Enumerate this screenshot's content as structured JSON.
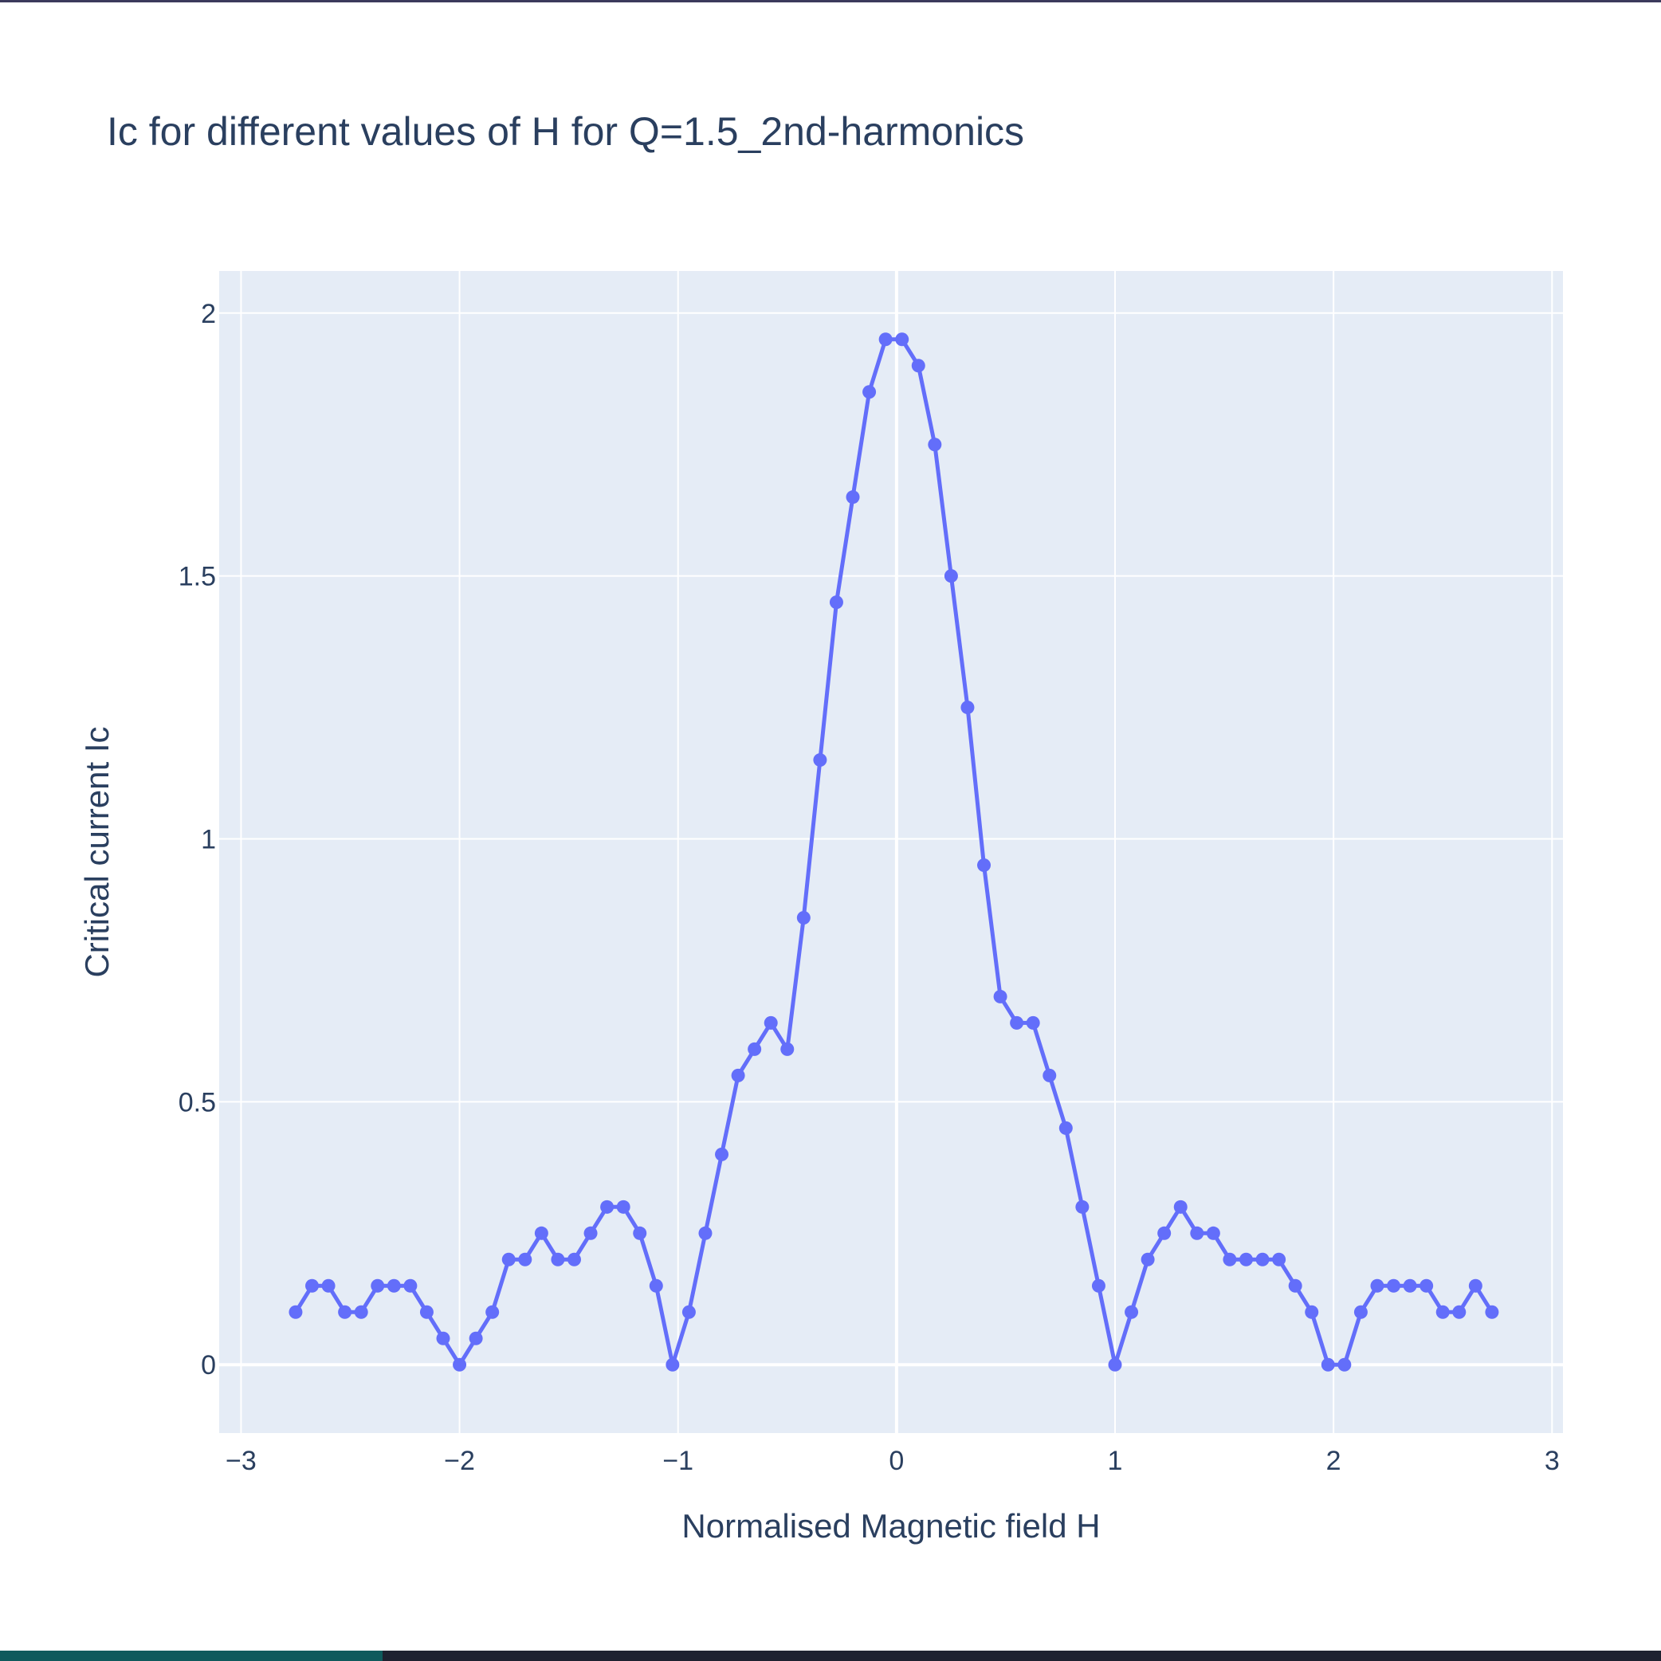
{
  "chart_data": {
    "type": "line",
    "title": "Ic for different values of H for Q=1.5_2nd-harmonics",
    "xlabel": "Normalised Magnetic field H",
    "ylabel": "Critical current Ic",
    "xlim": [
      -3.1,
      3.05
    ],
    "ylim": [
      -0.13,
      2.08
    ],
    "x_ticks": [
      -3,
      -2,
      -1,
      0,
      1,
      2,
      3
    ],
    "x_tick_labels": [
      "−3",
      "−2",
      "−1",
      "0",
      "1",
      "2",
      "3"
    ],
    "y_ticks": [
      0,
      0.5,
      1,
      1.5,
      2
    ],
    "y_tick_labels": [
      "0",
      "0.5",
      "1",
      "1.5",
      "2"
    ],
    "grid": true,
    "colors": {
      "line": "#636efa",
      "plot_bg": "#e5ecf6",
      "grid": "#ffffff",
      "text": "#2a3f5f"
    },
    "series": [
      {
        "mode": "lines+markers",
        "x": [
          -2.75,
          -2.675,
          -2.6,
          -2.525,
          -2.45,
          -2.375,
          -2.3,
          -2.225,
          -2.15,
          -2.075,
          -2.0,
          -1.925,
          -1.85,
          -1.775,
          -1.7,
          -1.625,
          -1.55,
          -1.475,
          -1.4,
          -1.325,
          -1.25,
          -1.175,
          -1.1,
          -1.025,
          -0.95,
          -0.875,
          -0.8,
          -0.725,
          -0.65,
          -0.575,
          -0.5,
          -0.425,
          -0.35,
          -0.275,
          -0.2,
          -0.125,
          -0.05,
          0.025,
          0.1,
          0.175,
          0.25,
          0.325,
          0.4,
          0.475,
          0.55,
          0.625,
          0.7,
          0.775,
          0.85,
          0.925,
          1.0,
          1.075,
          1.15,
          1.225,
          1.3,
          1.375,
          1.45,
          1.525,
          1.6,
          1.675,
          1.75,
          1.825,
          1.9,
          1.975,
          2.05,
          2.125,
          2.2,
          2.275,
          2.35,
          2.425,
          2.5,
          2.575,
          2.65,
          2.725
        ],
        "y": [
          0.1,
          0.15,
          0.15,
          0.1,
          0.1,
          0.15,
          0.15,
          0.15,
          0.1,
          0.05,
          0.0,
          0.05,
          0.1,
          0.2,
          0.2,
          0.25,
          0.2,
          0.2,
          0.25,
          0.3,
          0.3,
          0.25,
          0.15,
          0.0,
          0.1,
          0.25,
          0.4,
          0.55,
          0.6,
          0.65,
          0.6,
          0.85,
          1.15,
          1.45,
          1.65,
          1.85,
          1.95,
          1.95,
          1.9,
          1.75,
          1.5,
          1.25,
          0.95,
          0.7,
          0.65,
          0.65,
          0.55,
          0.45,
          0.3,
          0.15,
          0.0,
          0.1,
          0.2,
          0.25,
          0.3,
          0.25,
          0.25,
          0.2,
          0.2,
          0.2,
          0.2,
          0.15,
          0.1,
          0.0,
          0.0,
          0.1,
          0.15,
          0.15,
          0.15,
          0.15,
          0.1,
          0.1,
          0.15,
          0.1
        ]
      }
    ]
  }
}
